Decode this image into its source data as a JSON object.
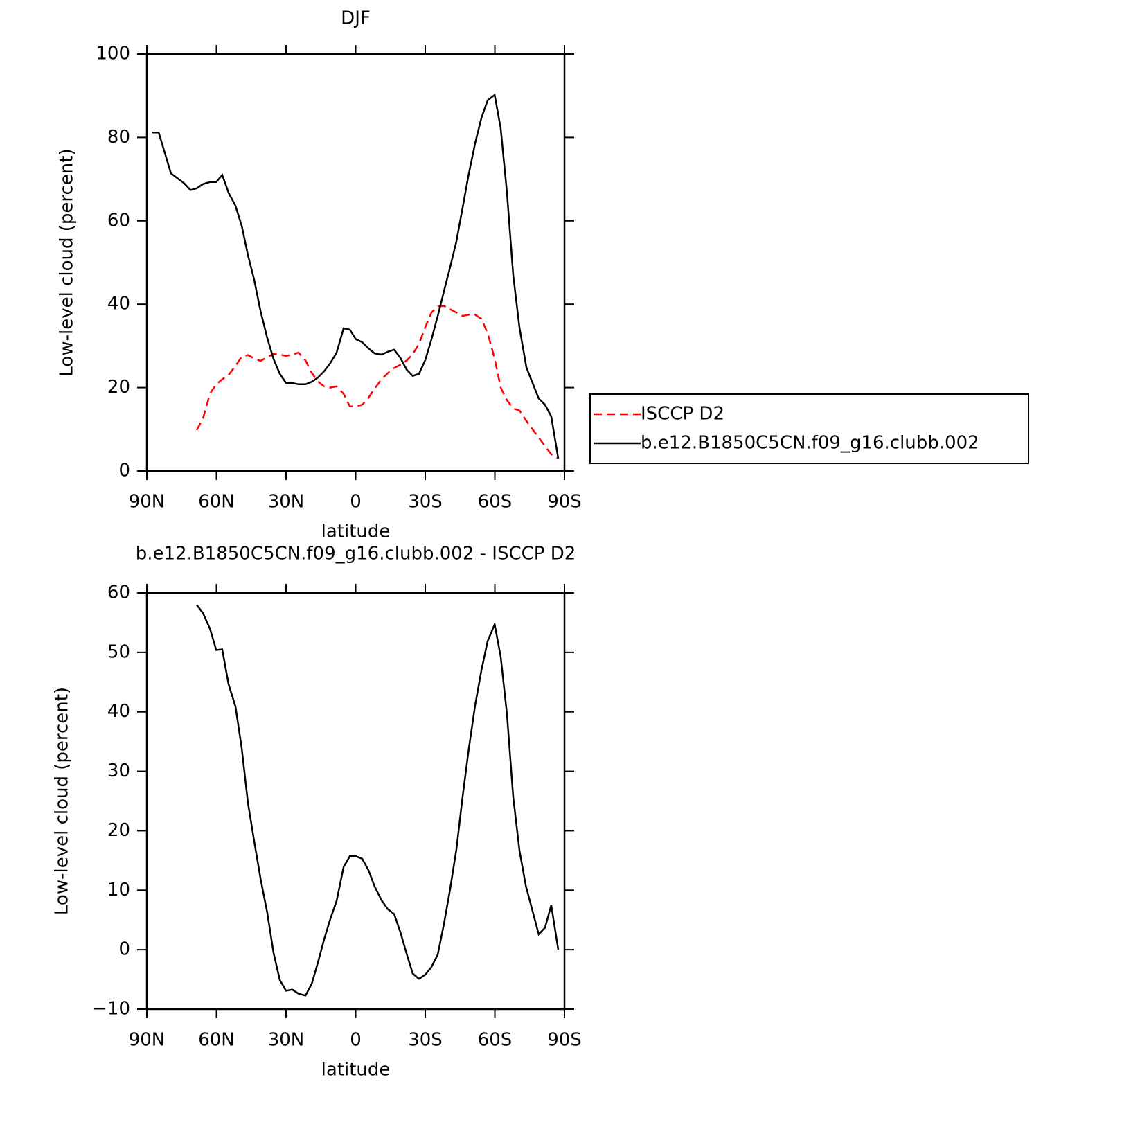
{
  "chart_data": [
    {
      "type": "line",
      "title": "DJF",
      "xlabel": "latitude",
      "ylabel": "Low-level cloud (percent)",
      "xlim": [
        90,
        -90
      ],
      "xticks": [
        {
          "value": 90,
          "label": "90N"
        },
        {
          "value": 60,
          "label": "60N"
        },
        {
          "value": 30,
          "label": "30N"
        },
        0,
        {
          "value": -30,
          "label": "30S"
        },
        {
          "value": -60,
          "label": "60S"
        },
        {
          "value": -90,
          "label": "90S"
        }
      ],
      "ylim": [
        0,
        100
      ],
      "yticks": [
        0,
        20,
        40,
        60,
        80,
        100
      ],
      "legend": "right",
      "series": [
        {
          "name": "ISCCP D2",
          "color": "#ff0000",
          "dash": true,
          "x": [
            68.5,
            65.8,
            62.8,
            60.1,
            57.5,
            54.8,
            51.8,
            49.1,
            46.4,
            43.7,
            41,
            38.1,
            35.4,
            32.7,
            30,
            27.3,
            24.6,
            21.6,
            18.9,
            16.3,
            13.6,
            10.9,
            8.2,
            5.2,
            2.5,
            -0.1,
            -2.8,
            -5.5,
            -8.2,
            -11.2,
            -13.9,
            -16.6,
            -19.3,
            -22,
            -24.6,
            -27.3,
            -30,
            -32.7,
            -35.4,
            -38.1,
            -40.7,
            -43.4,
            -46.1,
            -48.8,
            -51.5,
            -54.2,
            -56.9,
            -59.9,
            -62.5,
            -65.2,
            -67.9,
            -70.6,
            -73.6,
            -78.9,
            -81.6,
            -84.3,
            -87.3
          ],
          "values": [
            9.8,
            12.6,
            18.5,
            20.8,
            22,
            23,
            25.2,
            27.4,
            27.8,
            27,
            26.4,
            27.3,
            28.1,
            27.9,
            27.6,
            27.9,
            28.4,
            26.5,
            23.5,
            21.5,
            20.3,
            20,
            20.3,
            18.5,
            15.5,
            15.5,
            15.9,
            17.5,
            19.8,
            22,
            23.5,
            24.7,
            25.5,
            26.5,
            28,
            30.5,
            34.5,
            38,
            39.5,
            39.6,
            38.8,
            38,
            37.2,
            37.5,
            37.5,
            36.5,
            33,
            27,
            20,
            17,
            15,
            14.5,
            12,
            8,
            6,
            4,
            3
          ]
        },
        {
          "name": "b.e12.B1850C5CN.f09_g16.clubb.002",
          "color": "#000000",
          "dash": false,
          "x": [
            87.6,
            84.9,
            79.6,
            76.3,
            73.9,
            71.2,
            68.5,
            65.8,
            62.8,
            60.1,
            57.5,
            54.8,
            51.8,
            49.1,
            46.4,
            43.7,
            41,
            38.1,
            35.4,
            32.7,
            30,
            27.3,
            24.6,
            21.6,
            18.9,
            16.3,
            13.6,
            10.9,
            8.2,
            5.2,
            2.5,
            -0.1,
            -2.8,
            -5.5,
            -8.2,
            -11.2,
            -13.9,
            -16.6,
            -19.3,
            -22,
            -24.6,
            -27.3,
            -30,
            -32.7,
            -35.4,
            -38.1,
            -40.7,
            -43.4,
            -46.1,
            -48.8,
            -51.5,
            -54.2,
            -56.9,
            -59.9,
            -62.5,
            -65.2,
            -67.9,
            -70.6,
            -73.6,
            -78.9,
            -81.6,
            -84.3,
            -87.3
          ],
          "values": [
            81.2,
            81.2,
            71.4,
            70,
            69,
            67.4,
            67.8,
            68.8,
            69.3,
            69.3,
            71,
            66.8,
            63.6,
            58.8,
            51.7,
            45.8,
            38.4,
            31.9,
            26.9,
            23.3,
            21.1,
            21.1,
            20.8,
            20.8,
            21.4,
            22.4,
            23.9,
            25.9,
            28.4,
            34.2,
            33.9,
            31.6,
            30.9,
            29.4,
            28.2,
            27.9,
            28.6,
            29.1,
            27.1,
            24.3,
            22.8,
            23.3,
            26.6,
            31.6,
            37.2,
            43.2,
            48.8,
            55,
            63.1,
            71.4,
            78.6,
            84.7,
            88.9,
            90.2,
            82.2,
            66.9,
            47,
            34.4,
            24.8,
            17.4,
            15.9,
            13.1,
            3
          ]
        }
      ]
    },
    {
      "type": "line",
      "title": "b.e12.B1850C5CN.f09_g16.clubb.002 - ISCCP D2",
      "xlabel": "latitude",
      "ylabel": "Low-level cloud (percent)",
      "xlim": [
        90,
        -90
      ],
      "xticks": [
        {
          "value": 90,
          "label": "90N"
        },
        {
          "value": 60,
          "label": "60N"
        },
        {
          "value": 30,
          "label": "30N"
        },
        0,
        {
          "value": -30,
          "label": "30S"
        },
        {
          "value": -60,
          "label": "60S"
        },
        {
          "value": -90,
          "label": "90S"
        }
      ],
      "ylim": [
        -10,
        60
      ],
      "yticks": [
        {
          "value": -10,
          "label": "−10"
        },
        0,
        10,
        20,
        30,
        40,
        50,
        60
      ],
      "series": [
        {
          "color": "#000000",
          "dash": false,
          "x": [
            68.5,
            65.8,
            62.8,
            60.1,
            57.5,
            54.8,
            51.8,
            49.1,
            46.4,
            43.7,
            41,
            38.1,
            35.4,
            32.7,
            30,
            27.3,
            24.6,
            21.6,
            18.9,
            16.3,
            13.6,
            10.9,
            8.2,
            5.2,
            2.5,
            -0.1,
            -2.8,
            -5.5,
            -8.2,
            -11.2,
            -13.9,
            -16.6,
            -19.3,
            -22,
            -24.6,
            -27.3,
            -30,
            -32.7,
            -35.4,
            -38.1,
            -40.7,
            -43.4,
            -46.1,
            -48.8,
            -51.5,
            -54.2,
            -56.9,
            -59.9,
            -62.5,
            -65.2,
            -67.9,
            -70.6,
            -73.3,
            -78.9,
            -81.6,
            -84.3,
            -87.3
          ],
          "values": [
            58,
            56.6,
            54,
            50.4,
            50.5,
            44.7,
            40.9,
            33.9,
            24.6,
            18.2,
            12,
            6.2,
            -0.5,
            -5.1,
            -6.9,
            -6.7,
            -7.4,
            -7.7,
            -5.7,
            -2.2,
            1.7,
            5.2,
            8.2,
            13.9,
            15.7,
            15.7,
            15.3,
            13.4,
            10.6,
            8.3,
            6.8,
            6,
            2.9,
            -0.7,
            -4,
            -4.9,
            -4.2,
            -2.9,
            -0.8,
            4.4,
            10.1,
            16.8,
            25.7,
            33.9,
            41.1,
            47,
            51.9,
            54.7,
            49.3,
            39.7,
            25.7,
            16.7,
            10.8,
            2.6,
            3.7,
            7.5,
            0
          ]
        }
      ]
    }
  ]
}
